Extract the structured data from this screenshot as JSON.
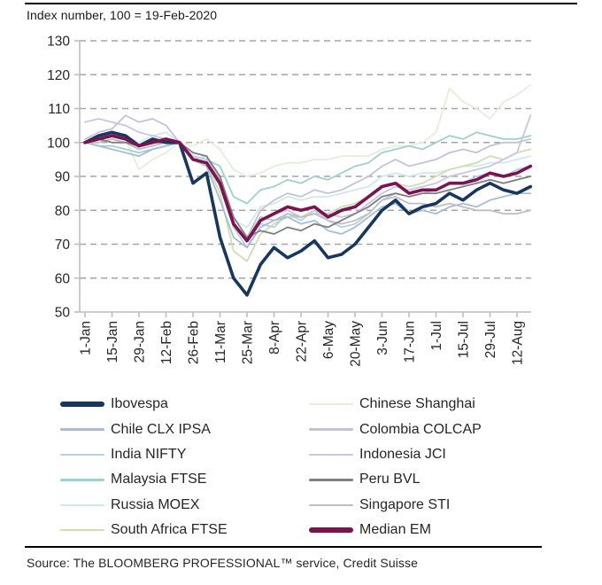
{
  "header": {
    "title": "Index number, 100 = 19-Feb-2020"
  },
  "footer": {
    "source": "Source: The BLOOMBERG PROFESSIONAL™ service, Credit Suisse"
  },
  "chart_data": {
    "type": "line",
    "title": "Index number, 100 = 19-Feb-2020",
    "xlabel": "",
    "ylabel": "",
    "ylim": [
      50,
      130
    ],
    "y_ticks": [
      50,
      60,
      70,
      80,
      90,
      100,
      110,
      120,
      130
    ],
    "grid": "horizontal dashed gray lines at each y tick from 60 to 130",
    "legend_position": "bottom, two columns",
    "x_unit": "weekly samples, week 0 = 1-Jan-2020, week 33 = 18-Aug-2020",
    "x_tick_labels": [
      "1-Jan",
      "15-Jan",
      "29-Jan",
      "12-Feb",
      "26-Feb",
      "11-Mar",
      "25-Mar",
      "8-Apr",
      "22-Apr",
      "6-May",
      "20-May",
      "3-Jun",
      "17-Jun",
      "1-Jul",
      "15-Jul",
      "29-Jul",
      "12-Aug"
    ],
    "x_tick_positions_weeks": [
      0,
      2,
      4,
      6,
      8,
      10,
      12,
      14,
      16,
      18,
      20,
      22,
      24,
      26,
      28,
      30,
      32
    ],
    "colors": {
      "axis": "#C6BBBB",
      "grid": "#A6A6A6",
      "text": "#262626"
    },
    "series": [
      {
        "name": "Ibovespa",
        "color": "#17375E",
        "width": 3.6,
        "z": 10,
        "values": [
          100,
          102,
          103,
          102,
          99,
          101,
          100,
          100,
          88,
          91,
          72,
          60,
          55,
          64,
          69,
          66,
          68,
          71,
          66,
          67,
          70,
          75,
          80,
          83,
          79,
          81,
          82,
          85,
          83,
          86,
          88,
          86,
          85,
          87
        ]
      },
      {
        "name": "Chinese Shanghai",
        "color": "#E2EFDA",
        "width": 1.8,
        "z": 0,
        "values": [
          100,
          101,
          102,
          101,
          92,
          95,
          97,
          100,
          99,
          101,
          98,
          92,
          90,
          91,
          93,
          94,
          94,
          95,
          95,
          96,
          96,
          96,
          98,
          99,
          99,
          100,
          103,
          116,
          112,
          110,
          107,
          112,
          114,
          117
        ]
      },
      {
        "name": "Chile CLX IPSA",
        "color": "#A5BDD6",
        "width": 1.8,
        "z": 7,
        "values": [
          100,
          99,
          98,
          97,
          96,
          98,
          99,
          100,
          95,
          93,
          83,
          72,
          69,
          75,
          77,
          78,
          76,
          77,
          74,
          73,
          75,
          78,
          81,
          82,
          79,
          80,
          79,
          81,
          82,
          81,
          83,
          84,
          85,
          85
        ]
      },
      {
        "name": "Colombia COLCAP",
        "color": "#C5C2D8",
        "width": 1.8,
        "z": 5,
        "values": [
          101,
          103,
          104,
          108,
          106,
          107,
          105,
          100,
          96,
          95,
          88,
          76,
          72,
          80,
          83,
          85,
          84,
          86,
          85,
          86,
          88,
          90,
          93,
          95,
          93,
          94,
          95,
          97,
          98,
          97,
          99,
          100,
          100,
          101
        ]
      },
      {
        "name": "India NIFTY",
        "color": "#B9CDE5",
        "width": 1.8,
        "z": 6,
        "values": [
          100,
          100,
          101,
          100,
          98,
          99,
          100,
          100,
          96,
          95,
          89,
          75,
          71,
          76,
          75,
          79,
          77,
          80,
          77,
          75,
          76,
          79,
          83,
          85,
          84,
          85,
          86,
          88,
          88,
          90,
          91,
          90,
          92,
          93
        ]
      },
      {
        "name": "Indonesia JCI",
        "color": "#CDC4E0",
        "width": 1.8,
        "z": 4,
        "values": [
          106,
          107,
          106,
          105,
          103,
          102,
          101,
          100,
          95,
          94,
          87,
          75,
          69,
          77,
          79,
          80,
          78,
          79,
          79,
          78,
          79,
          82,
          85,
          87,
          86,
          87,
          88,
          90,
          91,
          92,
          93,
          95,
          97,
          108
        ]
      },
      {
        "name": "Malaysia FTSE",
        "color": "#9FD0CF",
        "width": 1.8,
        "z": 3,
        "values": [
          100,
          99,
          99,
          98,
          97,
          98,
          99,
          100,
          96,
          95,
          93,
          84,
          82,
          86,
          87,
          89,
          88,
          90,
          89,
          91,
          93,
          94,
          97,
          98,
          99,
          98,
          100,
          102,
          101,
          103,
          102,
          101,
          101,
          102
        ]
      },
      {
        "name": "Peru BVL",
        "color": "#7F7F7F",
        "width": 1.8,
        "z": 9,
        "values": [
          100,
          101,
          100,
          100,
          99,
          100,
          100,
          100,
          97,
          96,
          90,
          78,
          72,
          74,
          73,
          75,
          74,
          76,
          75,
          77,
          79,
          81,
          84,
          85,
          84,
          85,
          85,
          86,
          87,
          88,
          89,
          88,
          89,
          90
        ]
      },
      {
        "name": "Russia MOEX",
        "color": "#CFE9E9",
        "width": 1.8,
        "z": 1,
        "values": [
          100,
          101,
          102,
          102,
          100,
          102,
          103,
          100,
          95,
          96,
          88,
          77,
          75,
          81,
          82,
          84,
          83,
          84,
          84,
          85,
          86,
          87,
          90,
          91,
          90,
          91,
          91,
          92,
          93,
          93,
          94,
          94,
          95,
          96
        ]
      },
      {
        "name": "Singapore STI",
        "color": "#BFBFBF",
        "width": 1.8,
        "z": 8,
        "values": [
          100,
          100,
          101,
          100,
          98,
          99,
          100,
          100,
          97,
          96,
          89,
          75,
          72,
          78,
          77,
          79,
          78,
          79,
          77,
          76,
          77,
          79,
          83,
          84,
          82,
          82,
          81,
          82,
          81,
          80,
          80,
          79,
          79,
          80
        ]
      },
      {
        "name": "South Africa FTSE",
        "color": "#CBDFB0",
        "width": 1.8,
        "z": 2,
        "values": [
          100,
          101,
          102,
          101,
          99,
          100,
          101,
          100,
          95,
          94,
          85,
          68,
          65,
          73,
          76,
          78,
          78,
          80,
          79,
          81,
          82,
          84,
          87,
          88,
          87,
          88,
          90,
          92,
          93,
          94,
          96,
          95,
          97,
          98
        ]
      },
      {
        "name": "Median EM",
        "color": "#7A1350",
        "width": 3.6,
        "z": 11,
        "values": [
          100,
          101,
          102,
          101,
          99,
          100,
          101,
          100,
          95,
          94,
          88,
          76,
          71,
          77,
          79,
          81,
          80,
          81,
          78,
          80,
          81,
          84,
          87,
          88,
          85,
          86,
          86,
          88,
          88,
          89,
          91,
          90,
          91,
          93
        ]
      }
    ]
  }
}
